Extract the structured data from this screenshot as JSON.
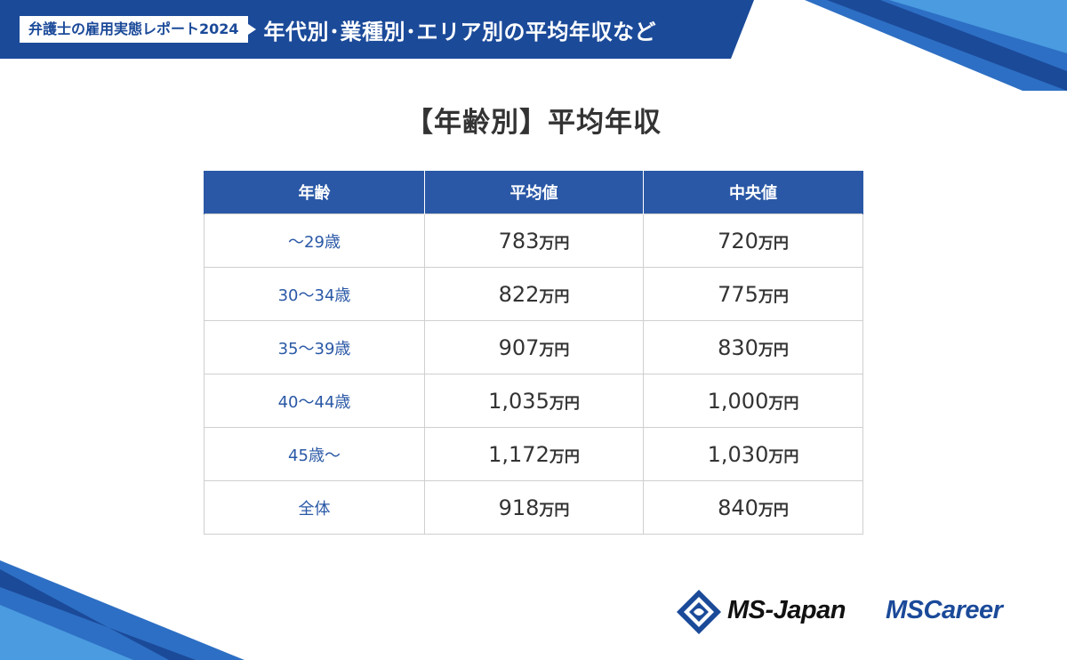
{
  "banner": {
    "label": "弁護士の雇用実態レポート2024",
    "title": "年代別･業種別･エリア別の平均年収など"
  },
  "page_title": "【年齢別】平均年収",
  "table": {
    "headers": [
      "年齢",
      "平均値",
      "中央値"
    ],
    "rows": [
      {
        "age": "～29歳",
        "mean": "783",
        "median": "720"
      },
      {
        "age": "30～34歳",
        "mean": "822",
        "median": "775"
      },
      {
        "age": "35～39歳",
        "mean": "907",
        "median": "830"
      },
      {
        "age": "40～44歳",
        "mean": "1,035",
        "median": "1,000"
      },
      {
        "age": "45歳～",
        "mean": "1,172",
        "median": "1,030"
      },
      {
        "age": "全体",
        "mean": "918",
        "median": "840"
      }
    ],
    "unit": "万円"
  },
  "logos": {
    "ms_japan": "MS-Japan",
    "ms_career": "MSCareer"
  },
  "colors": {
    "brand_blue": "#1b4a99",
    "header_blue": "#2a58a6",
    "accent_light_blue": "#4a9be0"
  }
}
